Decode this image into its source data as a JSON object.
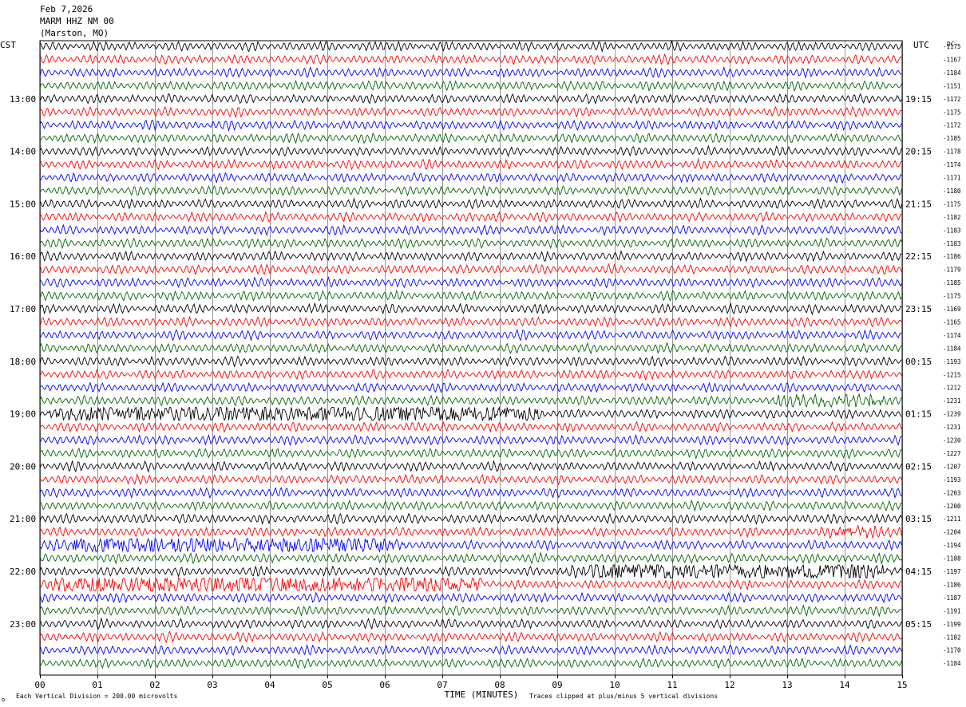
{
  "header": {
    "date": "Feb 7,2026",
    "station": "MARM HHZ NM 00",
    "location": "(Marston, MO)"
  },
  "labels": {
    "left_zone": "CST",
    "right_zone": "UTC",
    "dc_header": "DC",
    "xlabel": "TIME (MINUTES)",
    "footer_left": "Each Vertical Division =  200.00 microvolts",
    "footer_right": "Traces clipped at plus/minus 5 vertical divisions",
    "corner_mark": "ʘ"
  },
  "colors": {
    "cycle": [
      "#000000",
      "#ff0000",
      "#0000ff",
      "#006400"
    ],
    "grid": "#000000"
  },
  "chart_data": {
    "type": "line",
    "title": "",
    "xlabel": "TIME (MINUTES)",
    "ylabel": "",
    "xlim": [
      0,
      15
    ],
    "x_ticks": [
      "00",
      "01",
      "02",
      "03",
      "04",
      "05",
      "06",
      "07",
      "08",
      "09",
      "10",
      "11",
      "12",
      "13",
      "14",
      "15"
    ],
    "grid": "vertical",
    "trace_minutes": 15,
    "rows_start_cst": "12:00",
    "left_hour_labels": [
      "13:00",
      "14:00",
      "15:00",
      "16:00",
      "17:00",
      "18:00",
      "19:00",
      "20:00",
      "21:00",
      "22:00",
      "23:00"
    ],
    "right_hour_labels": [
      "19:15",
      "20:15",
      "21:15",
      "22:15",
      "23:15",
      "00:15",
      "01:15",
      "02:15",
      "03:15",
      "04:15",
      "05:15"
    ],
    "dc_offsets": [
      -1175,
      -1167,
      -1184,
      -1151,
      -1172,
      -1175,
      -1172,
      -1185,
      -1178,
      -1174,
      -1171,
      -1180,
      -1175,
      -1182,
      -1183,
      -1183,
      -1186,
      -1179,
      -1185,
      -1175,
      -1169,
      -1165,
      -1174,
      -1184,
      -1193,
      -1215,
      -1212,
      -1231,
      -1239,
      -1231,
      -1230,
      -1227,
      -1207,
      -1193,
      -1203,
      -1200,
      -1211,
      -1204,
      -1194,
      -1188,
      -1197,
      -1186,
      -1187,
      -1191,
      -1199,
      -1182,
      -1170,
      -1184
    ],
    "vertical_division_microvolts": 200.0,
    "clip_divisions": 5,
    "elevated_activity": [
      {
        "row": 27,
        "from_min": 12.5,
        "to_min": 15,
        "level": 2
      },
      {
        "row": 28,
        "from_min": 0,
        "to_min": 9,
        "level": 3
      },
      {
        "row": 37,
        "from_min": 13.5,
        "to_min": 15,
        "level": 2
      },
      {
        "row": 38,
        "from_min": 0,
        "to_min": 6.5,
        "level": 3
      },
      {
        "row": 40,
        "from_min": 9,
        "to_min": 15,
        "level": 3
      },
      {
        "row": 41,
        "from_min": 0,
        "to_min": 8,
        "level": 3
      }
    ]
  }
}
